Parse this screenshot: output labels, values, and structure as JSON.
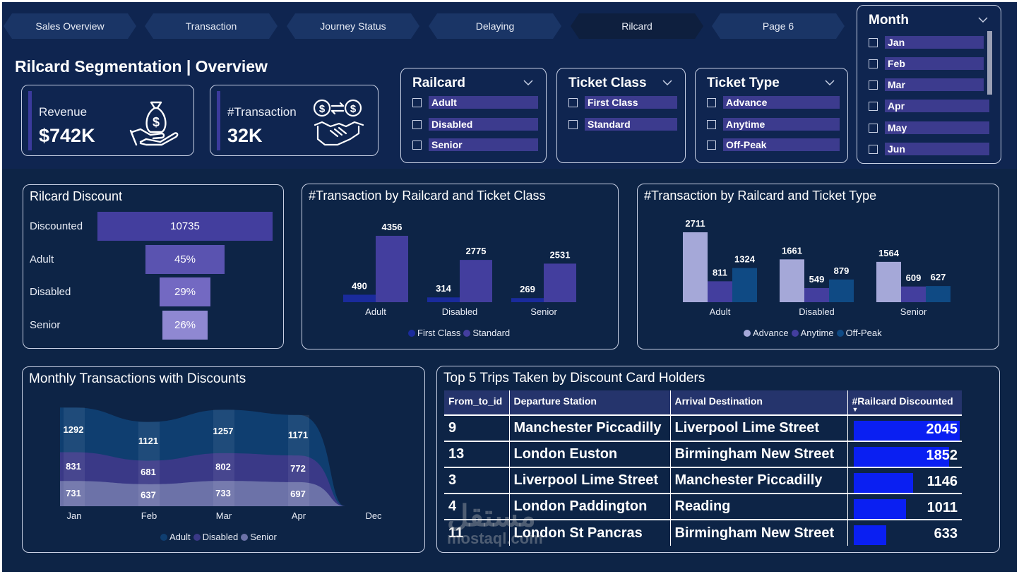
{
  "nav": {
    "tabs": [
      "Sales Overview",
      "Transaction",
      "Journey Status",
      "Delaying",
      "Rilcard",
      "Page 6"
    ],
    "active": "Rilcard"
  },
  "page_title": "Rilcard Segmentation | Overview",
  "kpis": {
    "revenue": {
      "label": "Revenue",
      "value": "$742K",
      "icon": "money-bag-hand-icon"
    },
    "transaction": {
      "label": "#Transaction",
      "value": "32K",
      "icon": "handshake-exchange-icon"
    }
  },
  "slicers": {
    "railcard": {
      "title": "Railcard",
      "options": [
        "Adult",
        "Disabled",
        "Senior"
      ]
    },
    "ticket_class": {
      "title": "Ticket Class",
      "options": [
        "First Class",
        "Standard"
      ]
    },
    "ticket_type": {
      "title": "Ticket Type",
      "options": [
        "Advance",
        "Anytime",
        "Off-Peak"
      ]
    },
    "month": {
      "title": "Month",
      "options": [
        "Jan",
        "Feb",
        "Mar",
        "Apr",
        "May",
        "Jun"
      ]
    }
  },
  "colors": {
    "background": "#0d2446",
    "first_class": "#1a2b9c",
    "standard": "#433e9e",
    "advance": "#a5a8d8",
    "anytime": "#433e9e",
    "off_peak": "#0f4a84",
    "adult_area": "#0f3e70",
    "disabled_area": "#3a3987",
    "senior_area": "#6c72a8",
    "databar": "#0a1ff2"
  },
  "chart_data": [
    {
      "id": "funnel",
      "type": "bar",
      "title": "Rilcard Discount",
      "categories": [
        "Discounted",
        "Adult",
        "Disabled",
        "Senior"
      ],
      "values": [
        10735,
        45,
        29,
        26
      ],
      "value_labels": [
        "10735",
        "45%",
        "29%",
        "26%"
      ]
    },
    {
      "id": "class",
      "type": "bar",
      "title": "#Transaction by Railcard and Ticket Class",
      "categories": [
        "Adult",
        "Disabled",
        "Senior"
      ],
      "series": [
        {
          "name": "First Class",
          "values": [
            490,
            314,
            269
          ]
        },
        {
          "name": "Standard",
          "values": [
            4356,
            2775,
            2531
          ]
        }
      ],
      "ylim": [
        0,
        4356
      ]
    },
    {
      "id": "type",
      "type": "bar",
      "title": "#Transaction by Railcard and Ticket Type",
      "categories": [
        "Adult",
        "Disabled",
        "Senior"
      ],
      "series": [
        {
          "name": "Advance",
          "values": [
            2711,
            1661,
            1564
          ]
        },
        {
          "name": "Anytime",
          "values": [
            811,
            549,
            609
          ]
        },
        {
          "name": "Off-Peak",
          "values": [
            1324,
            879,
            627
          ]
        }
      ],
      "ylim": [
        0,
        2711
      ]
    },
    {
      "id": "monthly",
      "type": "area",
      "title": "Monthly Transactions with Discounts",
      "x": [
        "Jan",
        "Feb",
        "Mar",
        "Apr",
        "Dec"
      ],
      "series": [
        {
          "name": "Adult",
          "values": [
            1292,
            1121,
            1257,
            1171,
            0
          ]
        },
        {
          "name": "Disabled",
          "values": [
            831,
            681,
            802,
            772,
            0
          ]
        },
        {
          "name": "Senior",
          "values": [
            731,
            637,
            733,
            697,
            0
          ]
        }
      ],
      "stacked": true
    }
  ],
  "top_trips": {
    "title": "Top 5 Trips Taken by Discount Card Holders",
    "columns": [
      "From_to_id",
      "Departure Station",
      "Arrival Destination",
      "#Railcard Discounted"
    ],
    "rows": [
      {
        "id": "9",
        "departure": "Manchester Piccadilly",
        "arrival": "Liverpool Lime Street",
        "count": 2045
      },
      {
        "id": "13",
        "departure": "London Euston",
        "arrival": "Birmingham New Street",
        "count": 1852
      },
      {
        "id": "3",
        "departure": "Liverpool Lime Street",
        "arrival": "Manchester Piccadilly",
        "count": 1146
      },
      {
        "id": "4",
        "departure": "London Paddington",
        "arrival": "Reading",
        "count": 1011
      },
      {
        "id": "11",
        "departure": "London St Pancras",
        "arrival": "Birmingham New Street",
        "count": 633
      }
    ]
  },
  "watermark": {
    "arabic": "مستقل",
    "latin": "mostaql.com"
  }
}
